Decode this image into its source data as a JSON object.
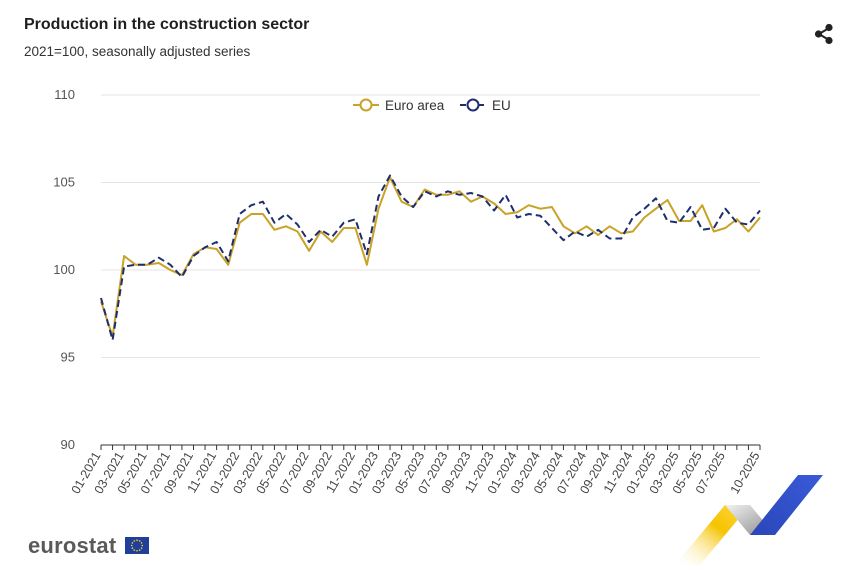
{
  "header": {
    "title": "Production in the construction sector",
    "subtitle": "2021=100, seasonally adjusted series"
  },
  "icons": {
    "share": "share-icon",
    "flag": "eu-flag-icon"
  },
  "footer": {
    "logo_text": "eurostat"
  },
  "colors": {
    "euro_area": "#c9a227",
    "eu": "#1f2e6e",
    "grid": "#e4e4e4",
    "axis": "#333333"
  },
  "chart_data": {
    "type": "line",
    "title": "Production in the construction sector",
    "subtitle": "2021=100, seasonally adjusted series",
    "xlabel": "",
    "ylabel": "",
    "ylim": [
      90,
      110
    ],
    "yticks": [
      90,
      95,
      100,
      105,
      110
    ],
    "grid": true,
    "legend_position": "top-center",
    "x": [
      "01-2021",
      "02-2021",
      "03-2021",
      "04-2021",
      "05-2021",
      "06-2021",
      "07-2021",
      "08-2021",
      "09-2021",
      "10-2021",
      "11-2021",
      "12-2021",
      "01-2022",
      "02-2022",
      "03-2022",
      "04-2022",
      "05-2022",
      "06-2022",
      "07-2022",
      "08-2022",
      "09-2022",
      "10-2022",
      "11-2022",
      "12-2022",
      "01-2023",
      "02-2023",
      "03-2023",
      "04-2023",
      "05-2023",
      "06-2023",
      "07-2023",
      "08-2023",
      "09-2023",
      "10-2023",
      "11-2023",
      "12-2023",
      "01-2024",
      "02-2024",
      "03-2024",
      "04-2024",
      "05-2024",
      "06-2024",
      "07-2024",
      "08-2024",
      "09-2024",
      "10-2024",
      "11-2024",
      "12-2024",
      "01-2025",
      "02-2025",
      "03-2025",
      "04-2025",
      "05-2025",
      "06-2025",
      "07-2025",
      "08-2025",
      "09-2025",
      "10-2025"
    ],
    "xtick_labels": [
      "01-2021",
      "03-2021",
      "05-2021",
      "07-2021",
      "09-2021",
      "11-2021",
      "01-2022",
      "03-2022",
      "05-2022",
      "07-2022",
      "09-2022",
      "11-2022",
      "01-2023",
      "03-2023",
      "05-2023",
      "07-2023",
      "09-2023",
      "11-2023",
      "01-2024",
      "03-2024",
      "05-2024",
      "07-2024",
      "09-2024",
      "11-2024",
      "01-2025",
      "03-2025",
      "05-2025",
      "07-2025",
      "10-2025"
    ],
    "series": [
      {
        "name": "Euro area",
        "style": "solid",
        "values": [
          98.2,
          96.2,
          100.8,
          100.3,
          100.3,
          100.4,
          100.0,
          99.7,
          100.9,
          101.3,
          101.2,
          100.3,
          102.7,
          103.2,
          103.2,
          102.3,
          102.5,
          102.2,
          101.1,
          102.2,
          101.6,
          102.4,
          102.4,
          100.3,
          103.5,
          105.3,
          103.9,
          103.6,
          104.6,
          104.3,
          104.3,
          104.5,
          103.9,
          104.2,
          103.8,
          103.2,
          103.3,
          103.7,
          103.5,
          103.6,
          102.5,
          102.1,
          102.5,
          102.0,
          102.5,
          102.1,
          102.2,
          103.0,
          103.5,
          104.0,
          102.8,
          102.8,
          103.7,
          102.2,
          102.4,
          102.9,
          102.2,
          103.0
        ]
      },
      {
        "name": "EU",
        "style": "dashed",
        "values": [
          98.4,
          96.0,
          100.2,
          100.3,
          100.3,
          100.7,
          100.3,
          99.6,
          100.8,
          101.3,
          101.6,
          100.5,
          103.2,
          103.7,
          103.9,
          102.7,
          103.2,
          102.6,
          101.6,
          102.3,
          101.9,
          102.7,
          102.9,
          100.9,
          104.2,
          105.4,
          104.2,
          103.6,
          104.5,
          104.2,
          104.5,
          104.3,
          104.4,
          104.2,
          103.4,
          104.3,
          103.0,
          103.2,
          103.1,
          102.4,
          101.7,
          102.2,
          101.9,
          102.3,
          101.8,
          101.8,
          103.0,
          103.5,
          104.1,
          102.8,
          102.7,
          103.6,
          102.3,
          102.4,
          103.5,
          102.7,
          102.6,
          103.4
        ]
      }
    ]
  }
}
